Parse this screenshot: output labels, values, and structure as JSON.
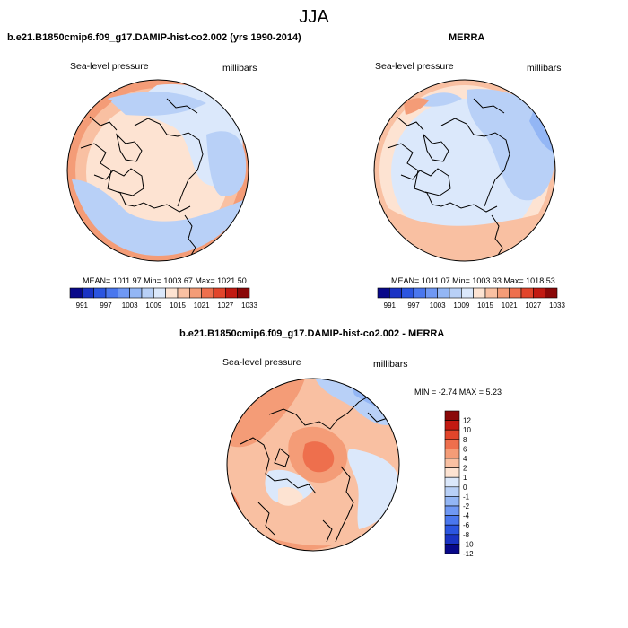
{
  "season": "JJA",
  "colors": {
    "abs_scale": [
      "#08088a",
      "#1a33c4",
      "#2b55e0",
      "#4a77ee",
      "#6f98f4",
      "#93b6f5",
      "#b8d0f7",
      "#dbe8fb",
      "#fde3d2",
      "#f9c0a2",
      "#f49c77",
      "#ee6f4d",
      "#e2452b",
      "#c21a12",
      "#8a0808"
    ],
    "diff_scale": [
      "#08088a",
      "#1a33c4",
      "#2b55e0",
      "#4a77ee",
      "#6f98f4",
      "#93b6f5",
      "#b8d0f7",
      "#dbe8fb",
      "#fde3d2",
      "#f9c0a2",
      "#f49c77",
      "#ee6f4d",
      "#e2452b",
      "#c21a12",
      "#8a0808"
    ]
  },
  "panels": [
    {
      "title": "b.e21.B1850cmip6.f09_g17.DAMIP-hist-co2.002 (yrs 1990-2014)",
      "variable": "Sea-level pressure",
      "units": "millibars",
      "stats": "MEAN= 1011.97  Min= 1003.67  Max= 1021.50",
      "colorbar_labels": [
        "991",
        "997",
        "1003",
        "1009",
        "1015",
        "1021",
        "1027",
        "1033"
      ]
    },
    {
      "title": "MERRA",
      "variable": "Sea-level pressure",
      "units": "millibars",
      "stats": "MEAN= 1011.07  Min= 1003.93  Max= 1018.53",
      "colorbar_labels": [
        "991",
        "997",
        "1003",
        "1009",
        "1015",
        "1021",
        "1027",
        "1033"
      ]
    },
    {
      "title": "b.e21.B1850cmip6.f09_g17.DAMIP-hist-co2.002 - MERRA",
      "variable": "Sea-level pressure",
      "units": "millibars",
      "stats": "MIN =  -2.74 MAX =   5.23",
      "colorbar_labels": [
        "12",
        "10",
        "8",
        "6",
        "4",
        "2",
        "1",
        "0",
        "-1",
        "-2",
        "-4",
        "-6",
        "-8",
        "-10",
        "-12"
      ]
    }
  ]
}
